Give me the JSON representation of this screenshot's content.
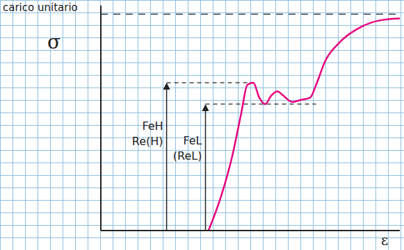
{
  "chart_data": {
    "type": "line",
    "title": "carico unitario",
    "ylabel": "σ",
    "xlabel": "ε",
    "x": [
      36,
      40,
      44,
      47,
      49,
      51,
      53,
      55,
      57,
      59,
      61,
      64,
      67,
      70,
      72,
      75,
      80,
      87,
      93,
      100
    ],
    "values": [
      0,
      15,
      35,
      55,
      68,
      69,
      62,
      59,
      63,
      65,
      63,
      60,
      61,
      62,
      68,
      79,
      88,
      95,
      98,
      99
    ],
    "color": "#e6007e",
    "xlim": [
      0,
      100
    ],
    "ylim": [
      0,
      105
    ],
    "xticks": [],
    "yticks": [],
    "tick_labels": false,
    "grid": true,
    "asymptote": 101,
    "annotations": [
      {
        "text": [
          "FeH",
          "Re(H)"
        ],
        "x": 22,
        "y": 69,
        "to_x": 51
      },
      {
        "text": [
          "FeL",
          "(ReL)"
        ],
        "x": 35,
        "y": 59,
        "to_x": 72
      }
    ]
  }
}
